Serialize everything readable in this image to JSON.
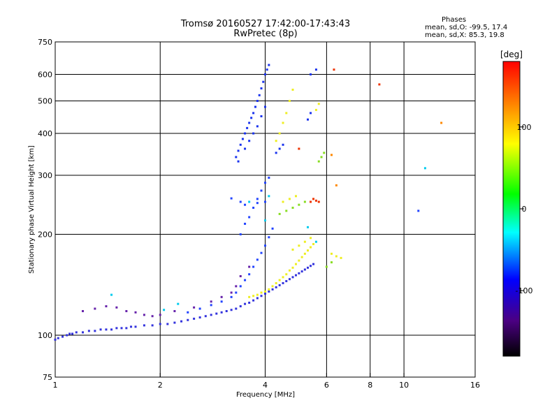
{
  "header": {
    "title_line1": "Tromsø 20160527 17:42:00-17:43:43",
    "title_line2": "RwPretec (8p)",
    "phases_label": "Phases",
    "stats_O": "mean, sd,O: -99.5, 17.4",
    "stats_X": "mean, sd,X:  85.3, 19.8"
  },
  "chart_data": {
    "type": "scatter",
    "xlabel": "Frequency [MHz]",
    "ylabel": "Stationary phase Virtual Height [km]",
    "x_scale": "log",
    "y_scale": "log",
    "xlim": [
      1,
      16
    ],
    "ylim": [
      75,
      750
    ],
    "x_ticks": [
      1,
      2,
      4,
      6,
      8,
      10,
      16
    ],
    "x_gridlines": [
      2,
      4,
      6,
      8,
      10
    ],
    "y_ticks": [
      75,
      100,
      200,
      300,
      400,
      500,
      600,
      750
    ],
    "y_gridlines": [
      100,
      200,
      300,
      400,
      500,
      600
    ],
    "colorbar": {
      "label": "[deg]",
      "range": [
        -180,
        180
      ],
      "ticks": [
        100,
        0,
        -100
      ],
      "colors": [
        "#ff0000",
        "#ff8000",
        "#ffff00",
        "#00ff00",
        "#00ffff",
        "#0000ff",
        "#4b0082",
        "#000000"
      ]
    },
    "color_note": "color encodes phase; blue/purple ≈ -100 deg (O mode), yellow ≈ +100 deg (X mode)",
    "series": [
      {
        "color": "#3333dd",
        "points": [
          [
            1.0,
            97
          ],
          [
            1.02,
            98
          ],
          [
            1.05,
            99
          ],
          [
            1.08,
            100
          ],
          [
            1.1,
            101
          ],
          [
            1.12,
            101
          ],
          [
            1.15,
            102
          ],
          [
            1.2,
            102
          ],
          [
            1.25,
            103
          ],
          [
            1.3,
            103
          ],
          [
            1.35,
            104
          ],
          [
            1.4,
            104
          ],
          [
            1.45,
            104
          ],
          [
            1.5,
            105
          ],
          [
            1.55,
            105
          ],
          [
            1.6,
            105
          ],
          [
            1.65,
            106
          ],
          [
            1.7,
            106
          ],
          [
            1.8,
            107
          ],
          [
            1.9,
            107
          ],
          [
            2.0,
            108
          ],
          [
            2.1,
            108
          ],
          [
            2.2,
            109
          ],
          [
            2.3,
            110
          ],
          [
            2.4,
            111
          ],
          [
            2.5,
            112
          ],
          [
            2.6,
            113
          ],
          [
            2.7,
            114
          ],
          [
            2.8,
            115
          ],
          [
            2.9,
            116
          ],
          [
            3.0,
            117
          ],
          [
            3.1,
            118
          ],
          [
            3.2,
            119
          ],
          [
            3.3,
            120
          ],
          [
            3.4,
            122
          ],
          [
            3.5,
            124
          ],
          [
            3.6,
            125
          ],
          [
            3.7,
            127
          ],
          [
            3.8,
            129
          ],
          [
            3.9,
            131
          ],
          [
            4.0,
            133
          ],
          [
            4.1,
            135
          ],
          [
            4.2,
            137
          ],
          [
            4.3,
            139
          ],
          [
            4.4,
            141
          ],
          [
            4.5,
            143
          ],
          [
            4.6,
            145
          ],
          [
            4.7,
            147
          ],
          [
            4.8,
            149
          ],
          [
            4.9,
            151
          ],
          [
            5.0,
            153
          ],
          [
            5.1,
            155
          ],
          [
            5.2,
            157
          ],
          [
            5.3,
            159
          ],
          [
            5.4,
            161
          ],
          [
            5.5,
            163
          ]
        ]
      },
      {
        "color": "#2244ff",
        "points": [
          [
            2.4,
            117
          ],
          [
            2.6,
            120
          ],
          [
            2.8,
            123
          ],
          [
            3.0,
            126
          ],
          [
            3.2,
            130
          ],
          [
            3.3,
            134
          ],
          [
            3.4,
            140
          ],
          [
            3.5,
            146
          ],
          [
            3.6,
            152
          ],
          [
            3.7,
            160
          ],
          [
            3.8,
            168
          ],
          [
            3.9,
            176
          ],
          [
            4.0,
            185
          ],
          [
            4.1,
            196
          ],
          [
            4.2,
            208
          ],
          [
            3.4,
            200
          ],
          [
            3.5,
            215
          ],
          [
            3.6,
            225
          ],
          [
            3.7,
            240
          ],
          [
            3.8,
            255
          ],
          [
            3.9,
            270
          ],
          [
            4.0,
            285
          ],
          [
            4.1,
            295
          ],
          [
            3.5,
            245
          ],
          [
            3.8,
            248
          ],
          [
            4.0,
            250
          ],
          [
            3.2,
            256
          ],
          [
            3.4,
            250
          ]
        ]
      },
      {
        "color": "#1a33ee",
        "points": [
          [
            3.3,
            340
          ],
          [
            3.35,
            355
          ],
          [
            3.4,
            370
          ],
          [
            3.45,
            385
          ],
          [
            3.5,
            400
          ],
          [
            3.55,
            415
          ],
          [
            3.6,
            430
          ],
          [
            3.65,
            445
          ],
          [
            3.7,
            460
          ],
          [
            3.75,
            480
          ],
          [
            3.8,
            500
          ],
          [
            3.85,
            520
          ],
          [
            3.9,
            545
          ],
          [
            3.95,
            570
          ],
          [
            4.0,
            600
          ],
          [
            4.05,
            620
          ],
          [
            4.1,
            640
          ],
          [
            3.35,
            330
          ],
          [
            3.5,
            360
          ],
          [
            3.6,
            380
          ],
          [
            3.7,
            400
          ],
          [
            3.8,
            420
          ],
          [
            3.9,
            450
          ],
          [
            4.0,
            480
          ],
          [
            4.3,
            350
          ],
          [
            4.4,
            360
          ],
          [
            4.5,
            370
          ],
          [
            5.4,
            600
          ],
          [
            5.6,
            620
          ],
          [
            5.3,
            440
          ],
          [
            5.4,
            460
          ]
        ]
      },
      {
        "color": "#6622aa",
        "points": [
          [
            1.2,
            118
          ],
          [
            1.3,
            120
          ],
          [
            1.4,
            122
          ],
          [
            1.5,
            121
          ],
          [
            1.6,
            118
          ],
          [
            1.7,
            117
          ],
          [
            1.8,
            115
          ],
          [
            1.9,
            114
          ],
          [
            2.0,
            115
          ],
          [
            2.2,
            118
          ],
          [
            2.5,
            121
          ],
          [
            2.8,
            126
          ],
          [
            3.0,
            130
          ],
          [
            3.2,
            134
          ],
          [
            3.3,
            140
          ],
          [
            3.4,
            150
          ],
          [
            3.6,
            160
          ]
        ]
      },
      {
        "color": "#00ccee",
        "points": [
          [
            1.45,
            132
          ],
          [
            2.05,
            119
          ],
          [
            2.25,
            124
          ],
          [
            3.6,
            250
          ],
          [
            4.1,
            260
          ],
          [
            4.0,
            220
          ],
          [
            5.3,
            210
          ],
          [
            5.6,
            190
          ],
          [
            11.5,
            315
          ]
        ]
      },
      {
        "color": "#eeee22",
        "points": [
          [
            3.6,
            130
          ],
          [
            3.7,
            131
          ],
          [
            3.8,
            132
          ],
          [
            3.9,
            134
          ],
          [
            4.0,
            135
          ],
          [
            4.1,
            137
          ],
          [
            4.2,
            140
          ],
          [
            4.3,
            143
          ],
          [
            4.4,
            146
          ],
          [
            4.5,
            149
          ],
          [
            4.6,
            152
          ],
          [
            4.7,
            156
          ],
          [
            4.8,
            159
          ],
          [
            4.9,
            163
          ],
          [
            5.0,
            167
          ],
          [
            5.1,
            171
          ],
          [
            5.2,
            175
          ],
          [
            5.3,
            179
          ],
          [
            5.4,
            183
          ],
          [
            5.5,
            187
          ],
          [
            4.8,
            180
          ],
          [
            5.0,
            185
          ],
          [
            5.2,
            190
          ],
          [
            5.4,
            195
          ],
          [
            6.2,
            175
          ],
          [
            6.4,
            172
          ],
          [
            6.6,
            170
          ],
          [
            4.5,
            250
          ],
          [
            4.7,
            255
          ],
          [
            4.9,
            260
          ],
          [
            4.3,
            380
          ],
          [
            4.4,
            400
          ],
          [
            4.5,
            430
          ],
          [
            4.6,
            460
          ],
          [
            4.7,
            500
          ],
          [
            4.8,
            540
          ],
          [
            5.6,
            470
          ],
          [
            5.7,
            490
          ]
        ]
      },
      {
        "color": "#88dd22",
        "points": [
          [
            4.4,
            230
          ],
          [
            4.6,
            235
          ],
          [
            4.8,
            240
          ],
          [
            5.0,
            245
          ],
          [
            5.2,
            250
          ],
          [
            5.7,
            330
          ],
          [
            5.8,
            340
          ],
          [
            5.9,
            350
          ],
          [
            6.0,
            160
          ],
          [
            6.2,
            165
          ]
        ]
      },
      {
        "color": "#ee3300",
        "points": [
          [
            5.4,
            250
          ],
          [
            5.5,
            255
          ],
          [
            5.6,
            252
          ],
          [
            5.7,
            250
          ],
          [
            6.3,
            620
          ],
          [
            8.5,
            560
          ],
          [
            5.0,
            360
          ]
        ]
      },
      {
        "color": "#ff8800",
        "points": [
          [
            6.2,
            345
          ],
          [
            12.8,
            430
          ],
          [
            6.4,
            280
          ]
        ]
      },
      {
        "color": "#2244ff",
        "points": [
          [
            11.0,
            235
          ]
        ]
      }
    ]
  }
}
